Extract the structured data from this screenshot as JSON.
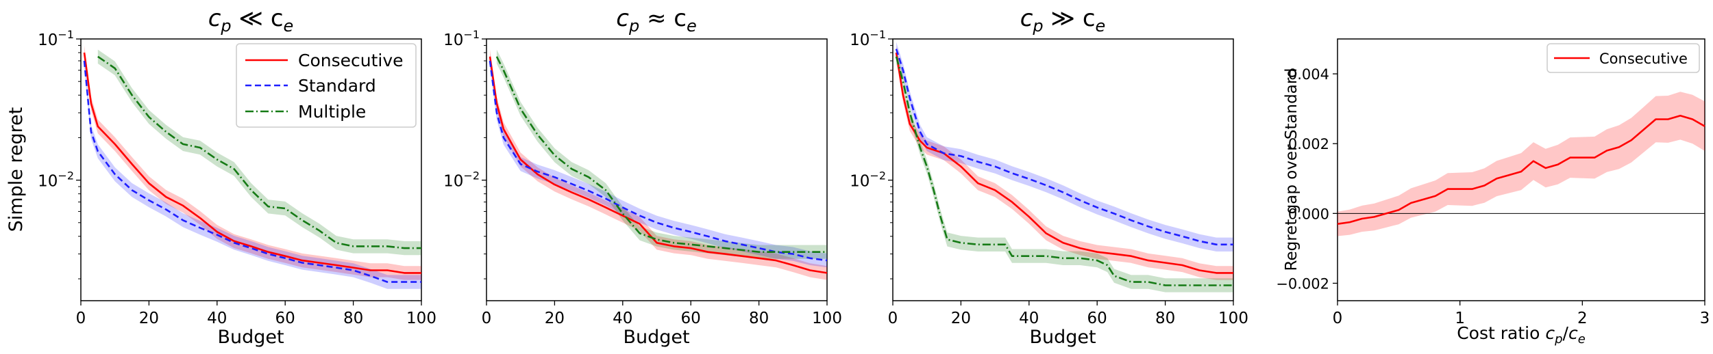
{
  "chart_data": [
    {
      "type": "line",
      "title": "c_p ≪ c_e",
      "title_main": "c",
      "title_sub_left": "p",
      "title_rel": " ≪ c",
      "title_sub_right": "e",
      "xlabel": "Budget",
      "ylabel": "Simple regret",
      "yscale": "log",
      "xlim": [
        0,
        100
      ],
      "ylim": [
        0.0014,
        0.1
      ],
      "xticks": [
        "0",
        "20",
        "40",
        "60",
        "80",
        "100"
      ],
      "yticks": [
        "10",
        "10"
      ],
      "yticks_exp": [
        "−1",
        "−2"
      ],
      "legend": [
        "Consecutive",
        "Standard",
        "Multiple"
      ],
      "series": [
        {
          "name": "Consecutive",
          "color": "#ff0000",
          "style": "solid",
          "x": [
            1,
            3,
            5,
            10,
            15,
            20,
            25,
            30,
            35,
            40,
            45,
            50,
            55,
            60,
            65,
            70,
            75,
            80,
            85,
            90,
            95,
            100
          ],
          "y": [
            0.08,
            0.035,
            0.024,
            0.018,
            0.013,
            0.0095,
            0.0076,
            0.0066,
            0.0054,
            0.0043,
            0.0037,
            0.0034,
            0.0031,
            0.0029,
            0.0027,
            0.0026,
            0.0025,
            0.0024,
            0.0023,
            0.0023,
            0.0022,
            0.0022
          ]
        },
        {
          "name": "Standard",
          "color": "#1f1fff",
          "style": "dashed",
          "x": [
            1,
            3,
            5,
            10,
            15,
            20,
            25,
            30,
            35,
            40,
            45,
            50,
            55,
            60,
            65,
            70,
            75,
            80,
            85,
            90,
            95,
            100
          ],
          "y": [
            0.07,
            0.022,
            0.016,
            0.011,
            0.0085,
            0.0072,
            0.0062,
            0.0052,
            0.0046,
            0.0041,
            0.0036,
            0.0033,
            0.003,
            0.0028,
            0.0026,
            0.0025,
            0.0024,
            0.0023,
            0.0021,
            0.0019,
            0.0019,
            0.0019
          ]
        },
        {
          "name": "Multiple",
          "color": "#157a15",
          "style": "dashdot",
          "x": [
            5,
            10,
            15,
            20,
            25,
            30,
            35,
            40,
            45,
            50,
            55,
            60,
            65,
            70,
            75,
            80,
            85,
            90,
            95,
            100
          ],
          "y": [
            0.075,
            0.062,
            0.04,
            0.028,
            0.022,
            0.018,
            0.017,
            0.014,
            0.012,
            0.0085,
            0.0065,
            0.0063,
            0.0052,
            0.0044,
            0.0036,
            0.0034,
            0.0034,
            0.0034,
            0.0033,
            0.0033
          ]
        }
      ]
    },
    {
      "type": "line",
      "title": "c_p ≈ c_e",
      "title_main": "c",
      "title_sub_left": "p",
      "title_rel": " ≈ c",
      "title_sub_right": "e",
      "xlabel": "Budget",
      "yscale": "log",
      "xlim": [
        0,
        100
      ],
      "ylim": [
        0.0014,
        0.1
      ],
      "xticks": [
        "0",
        "20",
        "40",
        "60",
        "80",
        "100"
      ],
      "yticks": [
        "10",
        "10"
      ],
      "yticks_exp": [
        "−1",
        "−2"
      ],
      "series": [
        {
          "name": "Consecutive",
          "color": "#ff0000",
          "style": "solid",
          "x": [
            1,
            3,
            5,
            10,
            15,
            20,
            25,
            30,
            35,
            40,
            45,
            50,
            55,
            60,
            65,
            70,
            75,
            80,
            85,
            90,
            95,
            100
          ],
          "y": [
            0.075,
            0.035,
            0.023,
            0.014,
            0.011,
            0.0093,
            0.0082,
            0.0073,
            0.0064,
            0.0056,
            0.0049,
            0.0036,
            0.0034,
            0.0033,
            0.0031,
            0.003,
            0.0029,
            0.0028,
            0.0027,
            0.0025,
            0.0023,
            0.0022
          ]
        },
        {
          "name": "Standard",
          "color": "#1f1fff",
          "style": "dashed",
          "x": [
            1,
            3,
            5,
            10,
            15,
            20,
            25,
            30,
            35,
            40,
            45,
            50,
            55,
            60,
            65,
            70,
            75,
            80,
            85,
            90,
            95,
            100
          ],
          "y": [
            0.07,
            0.03,
            0.02,
            0.013,
            0.0115,
            0.0105,
            0.0094,
            0.0084,
            0.0074,
            0.0064,
            0.0056,
            0.005,
            0.0046,
            0.0043,
            0.004,
            0.0037,
            0.0035,
            0.0033,
            0.0031,
            0.003,
            0.0028,
            0.0027
          ]
        },
        {
          "name": "Multiple",
          "color": "#157a15",
          "style": "dashdot",
          "x": [
            3,
            5,
            10,
            15,
            20,
            25,
            30,
            35,
            40,
            45,
            50,
            55,
            60,
            65,
            70,
            75,
            80,
            85,
            90,
            95,
            100
          ],
          "y": [
            0.075,
            0.06,
            0.032,
            0.021,
            0.015,
            0.012,
            0.0105,
            0.0085,
            0.0058,
            0.0042,
            0.0038,
            0.0036,
            0.0035,
            0.0034,
            0.0033,
            0.0032,
            0.0031,
            0.0031,
            0.0031,
            0.0031,
            0.0031
          ]
        }
      ]
    },
    {
      "type": "line",
      "title": "c_p ≫ c_e",
      "title_main": "c",
      "title_sub_left": "p",
      "title_rel": " ≫ c",
      "title_sub_right": "e",
      "xlabel": "Budget",
      "yscale": "log",
      "xlim": [
        0,
        100
      ],
      "ylim": [
        0.0014,
        0.1
      ],
      "xticks": [
        "0",
        "20",
        "40",
        "60",
        "80",
        "100"
      ],
      "yticks": [
        "10",
        "10"
      ],
      "yticks_exp": [
        "−1",
        "−2"
      ],
      "series": [
        {
          "name": "Consecutive",
          "color": "#ff0000",
          "style": "solid",
          "x": [
            1,
            3,
            5,
            8,
            10,
            15,
            20,
            25,
            30,
            35,
            40,
            45,
            50,
            55,
            60,
            65,
            70,
            75,
            80,
            85,
            90,
            95,
            100
          ],
          "y": [
            0.08,
            0.04,
            0.025,
            0.019,
            0.017,
            0.0155,
            0.0125,
            0.0095,
            0.0085,
            0.007,
            0.0055,
            0.0042,
            0.0036,
            0.0033,
            0.0031,
            0.003,
            0.0029,
            0.0027,
            0.0026,
            0.0025,
            0.0023,
            0.0022,
            0.0022
          ]
        },
        {
          "name": "Standard",
          "color": "#1f1fff",
          "style": "dashed",
          "x": [
            1,
            3,
            5,
            8,
            10,
            15,
            20,
            25,
            30,
            35,
            40,
            45,
            50,
            55,
            60,
            65,
            70,
            75,
            80,
            85,
            90,
            95,
            100
          ],
          "y": [
            0.085,
            0.06,
            0.038,
            0.022,
            0.018,
            0.0155,
            0.0148,
            0.0135,
            0.0125,
            0.0112,
            0.0102,
            0.0092,
            0.0082,
            0.0072,
            0.0064,
            0.0058,
            0.0052,
            0.0047,
            0.0043,
            0.004,
            0.0037,
            0.0035,
            0.0035
          ]
        },
        {
          "name": "Multiple",
          "color": "#157a15",
          "style": "dashdot",
          "x": [
            1,
            3,
            5,
            8,
            10,
            12,
            14,
            16,
            20,
            25,
            30,
            33,
            35,
            40,
            45,
            50,
            55,
            60,
            63,
            65,
            70,
            75,
            80,
            85,
            90,
            95,
            100
          ],
          "y": [
            0.075,
            0.05,
            0.03,
            0.017,
            0.0125,
            0.0085,
            0.0055,
            0.0038,
            0.0036,
            0.0035,
            0.0035,
            0.0035,
            0.0029,
            0.0029,
            0.0029,
            0.0028,
            0.0028,
            0.0027,
            0.0025,
            0.0021,
            0.0019,
            0.0019,
            0.0018,
            0.0018,
            0.0018,
            0.0018,
            0.0018
          ]
        }
      ]
    },
    {
      "type": "line",
      "xlabel": "Cost ratio c_p/c_e",
      "xlabel_text": "Cost ratio ",
      "xlabel_c1": "c",
      "xlabel_s1": "p",
      "xlabel_slash": "/",
      "xlabel_c2": "c",
      "xlabel_s2": "e",
      "ylabel": "Regret gap over Standard",
      "xlim": [
        0,
        3
      ],
      "ylim": [
        -0.0025,
        0.005
      ],
      "xticks": [
        "0",
        "1",
        "2",
        "3"
      ],
      "yticks": [
        "−0.002",
        "0.000",
        "0.002",
        "0.004"
      ],
      "legend": [
        "Consecutive"
      ],
      "series": [
        {
          "name": "Consecutive",
          "color": "#ff0000",
          "style": "solid",
          "x": [
            0,
            0.1,
            0.2,
            0.3,
            0.4,
            0.5,
            0.6,
            0.7,
            0.8,
            0.9,
            1.0,
            1.1,
            1.2,
            1.3,
            1.4,
            1.5,
            1.6,
            1.7,
            1.8,
            1.9,
            2.0,
            2.1,
            2.2,
            2.3,
            2.4,
            2.5,
            2.6,
            2.7,
            2.8,
            2.9,
            3.0
          ],
          "y": [
            -0.0003,
            -0.00025,
            -0.00015,
            -0.0001,
            0.0,
            0.0001,
            0.0003,
            0.0004,
            0.0005,
            0.0007,
            0.0007,
            0.0007,
            0.0008,
            0.001,
            0.0011,
            0.0012,
            0.0015,
            0.0013,
            0.0014,
            0.0016,
            0.0016,
            0.0016,
            0.0018,
            0.0019,
            0.0021,
            0.0024,
            0.0027,
            0.0027,
            0.0028,
            0.0027,
            0.0025
          ]
        }
      ]
    }
  ]
}
